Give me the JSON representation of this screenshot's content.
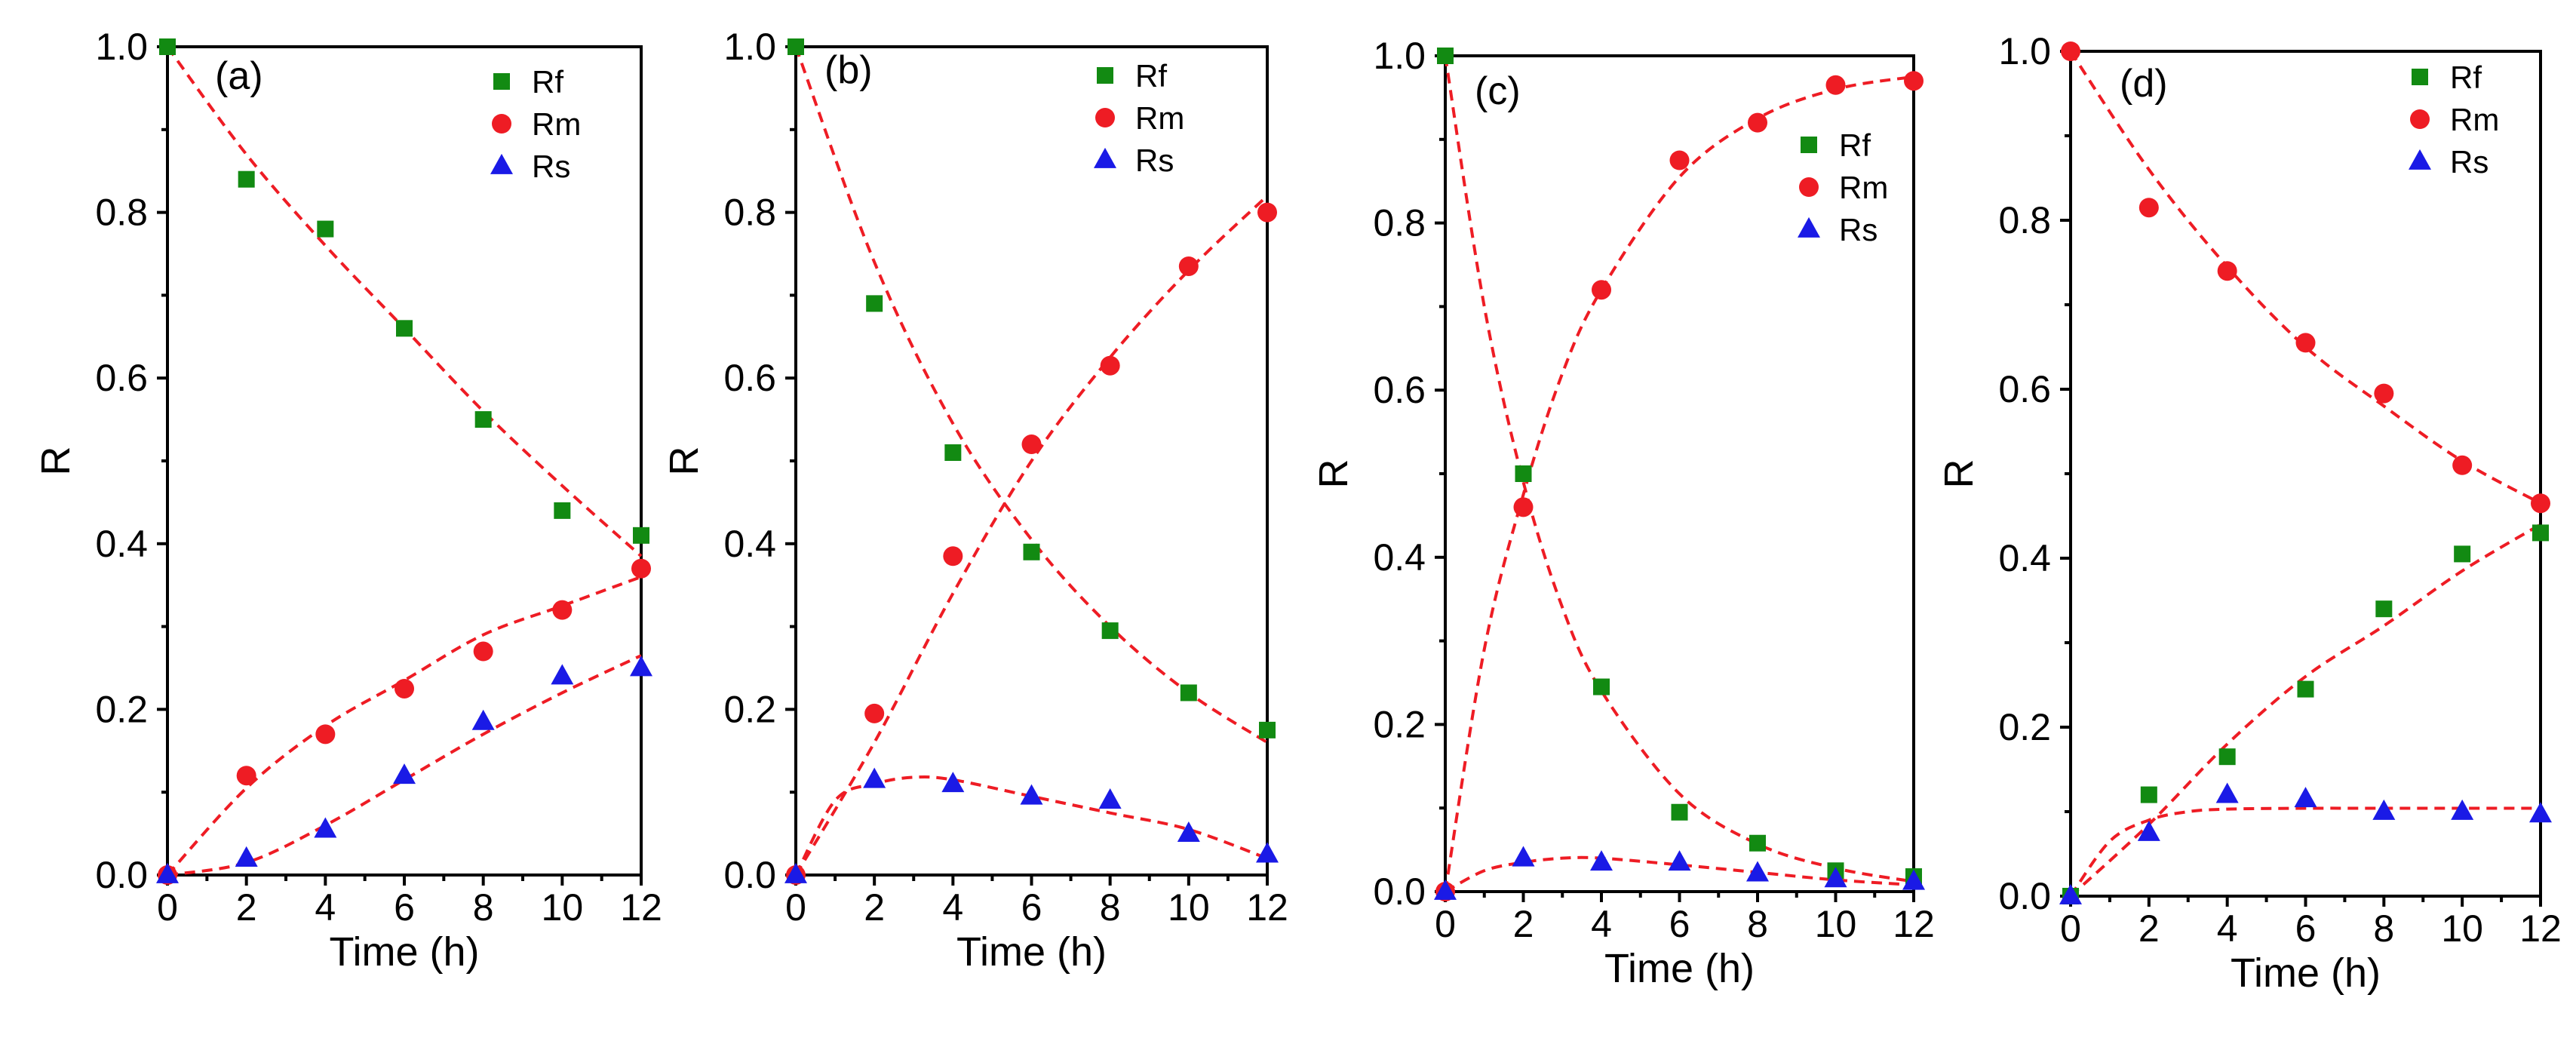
{
  "colors": {
    "Rf": "#128a12",
    "Rm": "#ee1c24",
    "Rs": "#1a1ae6",
    "fit": "#ee1c24"
  },
  "chart_data": [
    {
      "type": "scatter",
      "panel": "(a)",
      "xlabel": "Time (h)",
      "ylabel": "R",
      "xlim": [
        0,
        12
      ],
      "ylim": [
        0,
        1.0
      ],
      "xticks": [
        "0",
        "2",
        "4",
        "6",
        "8",
        "10",
        "12"
      ],
      "yticks": [
        "0.0",
        "0.2",
        "0.4",
        "0.6",
        "0.8",
        "1.0"
      ],
      "legend": [
        "Rf",
        "Rm",
        "Rs"
      ],
      "legend_position": "top-right",
      "x": [
        0,
        2,
        4,
        6,
        8,
        10,
        12
      ],
      "series": [
        {
          "name": "Rf",
          "marker": "square",
          "values": [
            1.0,
            0.84,
            0.78,
            0.66,
            0.55,
            0.44,
            0.41
          ]
        },
        {
          "name": "Rm",
          "marker": "circle",
          "values": [
            0.0,
            0.12,
            0.17,
            0.225,
            0.27,
            0.32,
            0.37
          ]
        },
        {
          "name": "Rs",
          "marker": "triangle",
          "values": [
            0.0,
            0.02,
            0.055,
            0.12,
            0.185,
            0.24,
            0.25
          ]
        }
      ],
      "fits": [
        {
          "x": [
            0,
            2,
            4,
            6,
            8,
            10,
            12
          ],
          "y": [
            1.0,
            0.87,
            0.76,
            0.66,
            0.56,
            0.47,
            0.385
          ]
        },
        {
          "x": [
            0,
            2,
            4,
            6,
            8,
            10,
            12
          ],
          "y": [
            0.0,
            0.105,
            0.18,
            0.235,
            0.29,
            0.325,
            0.36
          ]
        },
        {
          "x": [
            0,
            2,
            4,
            6,
            8,
            10,
            12
          ],
          "y": [
            0.0,
            0.015,
            0.06,
            0.115,
            0.17,
            0.22,
            0.265
          ]
        }
      ]
    },
    {
      "type": "scatter",
      "panel": "(b)",
      "xlabel": "Time (h)",
      "ylabel": "R",
      "xlim": [
        0,
        12
      ],
      "ylim": [
        0,
        1.0
      ],
      "xticks": [
        "0",
        "2",
        "4",
        "6",
        "8",
        "10",
        "12"
      ],
      "yticks": [
        "0.0",
        "0.2",
        "0.4",
        "0.6",
        "0.8",
        "1.0"
      ],
      "legend": [
        "Rf",
        "Rm",
        "Rs"
      ],
      "legend_position": "top-right",
      "x": [
        0,
        2,
        4,
        6,
        8,
        10,
        12
      ],
      "series": [
        {
          "name": "Rf",
          "marker": "square",
          "values": [
            1.0,
            0.69,
            0.51,
            0.39,
            0.295,
            0.22,
            0.175
          ]
        },
        {
          "name": "Rm",
          "marker": "circle",
          "values": [
            0.0,
            0.195,
            0.385,
            0.52,
            0.615,
            0.735,
            0.8
          ]
        },
        {
          "name": "Rs",
          "marker": "triangle",
          "values": [
            0.0,
            0.115,
            0.11,
            0.095,
            0.09,
            0.05,
            0.025
          ]
        }
      ],
      "fits": [
        {
          "x": [
            0,
            2,
            4,
            6,
            8,
            10,
            12
          ],
          "y": [
            1.0,
            0.74,
            0.545,
            0.405,
            0.3,
            0.22,
            0.16
          ]
        },
        {
          "x": [
            0,
            2,
            4,
            6,
            8,
            10,
            12
          ],
          "y": [
            0.0,
            0.16,
            0.34,
            0.5,
            0.625,
            0.73,
            0.82
          ]
        },
        {
          "x": [
            0,
            1,
            2,
            3,
            4,
            6,
            8,
            10,
            12
          ],
          "y": [
            0.0,
            0.09,
            0.11,
            0.118,
            0.115,
            0.095,
            0.075,
            0.055,
            0.02
          ]
        }
      ]
    },
    {
      "type": "scatter",
      "panel": "(c)",
      "xlabel": "Time (h)",
      "ylabel": "R",
      "xlim": [
        0,
        12
      ],
      "ylim": [
        0,
        1.0
      ],
      "xticks": [
        "0",
        "2",
        "4",
        "6",
        "8",
        "10",
        "12"
      ],
      "yticks": [
        "0.0",
        "0.2",
        "0.4",
        "0.6",
        "0.8",
        "1.0"
      ],
      "legend": [
        "Rf",
        "Rm",
        "Rs"
      ],
      "legend_position": "upper-middle-right",
      "x": [
        0,
        2,
        4,
        6,
        8,
        10,
        12
      ],
      "series": [
        {
          "name": "Rf",
          "marker": "square",
          "values": [
            1.0,
            0.5,
            0.245,
            0.095,
            0.058,
            0.025,
            0.018
          ]
        },
        {
          "name": "Rm",
          "marker": "circle",
          "values": [
            0.0,
            0.46,
            0.72,
            0.875,
            0.92,
            0.965,
            0.97
          ]
        },
        {
          "name": "Rs",
          "marker": "triangle",
          "values": [
            0.0,
            0.04,
            0.035,
            0.035,
            0.022,
            0.015,
            0.012
          ]
        }
      ],
      "fits": [
        {
          "x": [
            0,
            1,
            2,
            3,
            4,
            6,
            8,
            10,
            12
          ],
          "y": [
            1.0,
            0.7,
            0.49,
            0.34,
            0.24,
            0.117,
            0.057,
            0.028,
            0.012
          ]
        },
        {
          "x": [
            0,
            1,
            2,
            3,
            4,
            6,
            8,
            10,
            12
          ],
          "y": [
            0.0,
            0.29,
            0.475,
            0.62,
            0.72,
            0.855,
            0.925,
            0.96,
            0.975
          ]
        },
        {
          "x": [
            0,
            1,
            2,
            3,
            4,
            6,
            8,
            10,
            12
          ],
          "y": [
            0.0,
            0.025,
            0.035,
            0.04,
            0.04,
            0.032,
            0.023,
            0.014,
            0.008
          ]
        }
      ]
    },
    {
      "type": "scatter",
      "panel": "(d)",
      "xlabel": "Time (h)",
      "ylabel": "R",
      "xlim": [
        0,
        12
      ],
      "ylim": [
        0,
        1.0
      ],
      "xticks": [
        "0",
        "2",
        "4",
        "6",
        "8",
        "10",
        "12"
      ],
      "yticks": [
        "0.0",
        "0.2",
        "0.4",
        "0.6",
        "0.8",
        "1.0"
      ],
      "legend": [
        "Rf",
        "Rm",
        "Rs"
      ],
      "legend_position": "top-right",
      "x": [
        0,
        2,
        4,
        6,
        8,
        10,
        12
      ],
      "series": [
        {
          "name": "Rf",
          "marker": "square",
          "values": [
            0.0,
            0.12,
            0.165,
            0.245,
            0.34,
            0.405,
            0.43
          ]
        },
        {
          "name": "Rm",
          "marker": "circle",
          "values": [
            1.0,
            0.815,
            0.74,
            0.655,
            0.595,
            0.51,
            0.465
          ]
        },
        {
          "name": "Rs",
          "marker": "triangle",
          "values": [
            0.0,
            0.075,
            0.12,
            0.115,
            0.1,
            0.1,
            0.097
          ]
        }
      ],
      "fits": [
        {
          "x": [
            0,
            2,
            4,
            6,
            8,
            10,
            12
          ],
          "y": [
            1.0,
            0.86,
            0.745,
            0.65,
            0.58,
            0.515,
            0.465
          ]
        },
        {
          "x": [
            0,
            2,
            4,
            6,
            8,
            10,
            12
          ],
          "y": [
            0.0,
            0.085,
            0.18,
            0.26,
            0.32,
            0.385,
            0.44
          ]
        },
        {
          "x": [
            0,
            1,
            2,
            3,
            4,
            6,
            8,
            10,
            12
          ],
          "y": [
            0.0,
            0.065,
            0.09,
            0.1,
            0.103,
            0.104,
            0.104,
            0.104,
            0.104
          ]
        }
      ]
    }
  ]
}
